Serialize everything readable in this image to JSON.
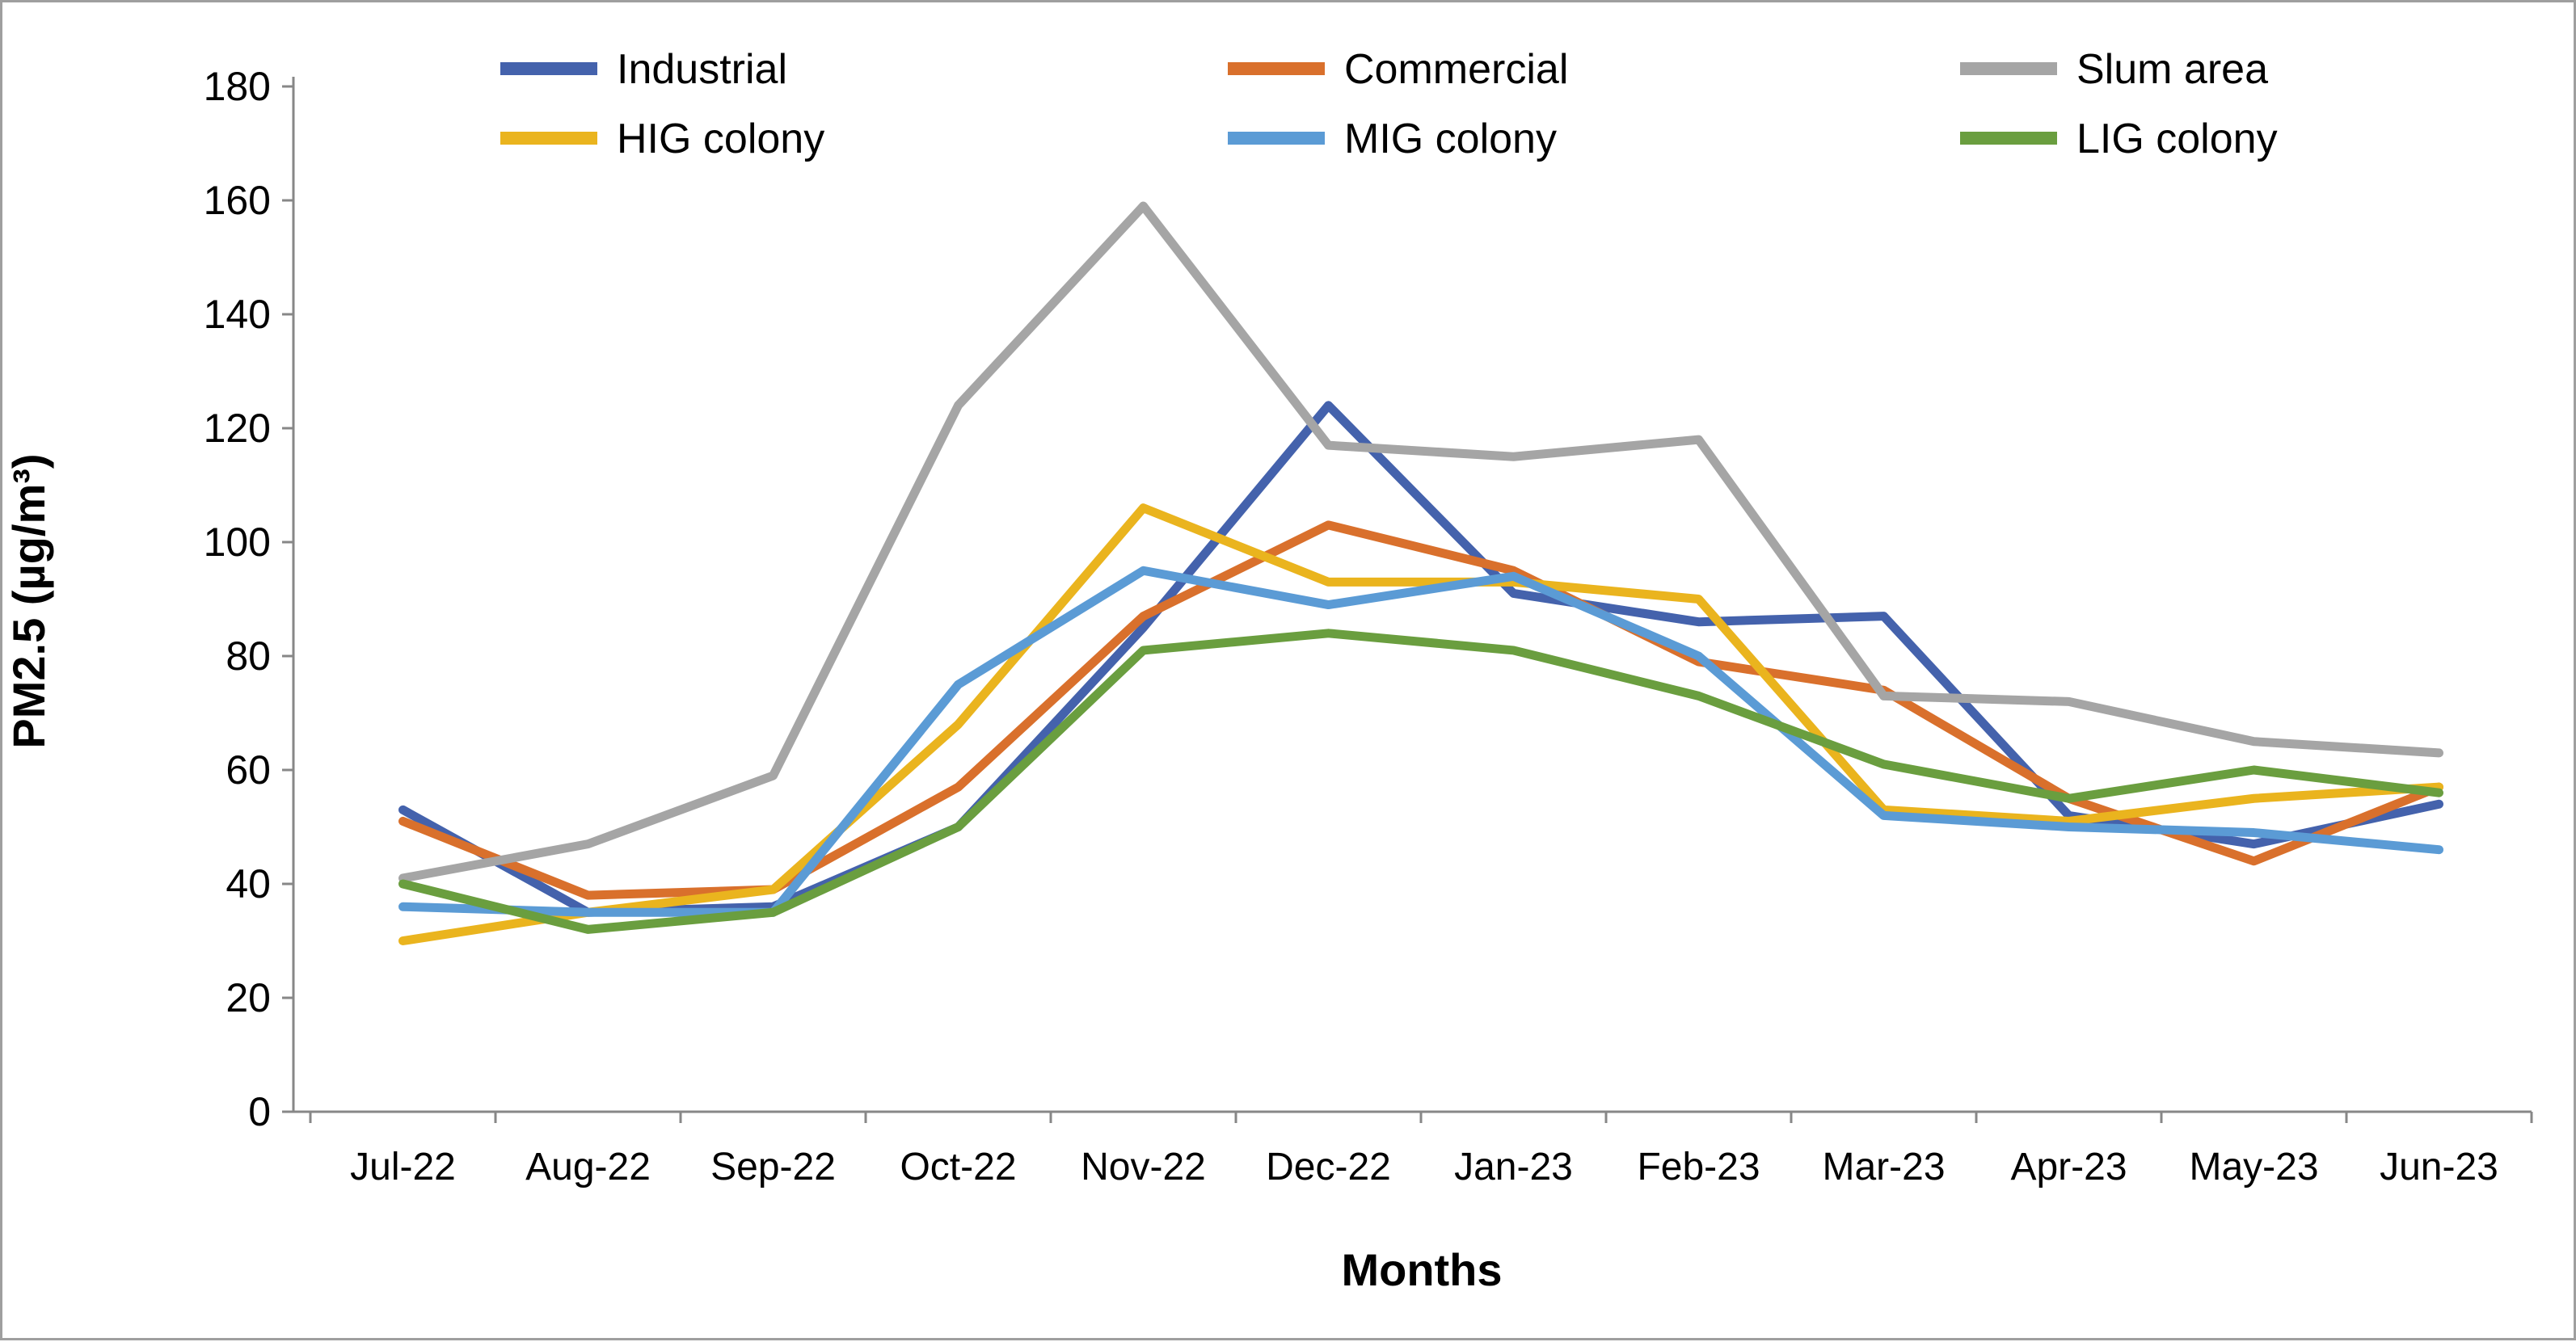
{
  "chart_data": {
    "type": "line",
    "title": "",
    "xlabel": "Months",
    "ylabel": "PM2.5 (µg/m³)",
    "ylim": [
      0,
      180
    ],
    "ytick_step": 20,
    "yticks": [
      0,
      20,
      40,
      60,
      80,
      100,
      120,
      140,
      160,
      180
    ],
    "grid": false,
    "legend_position": "top",
    "legend_rows": 2,
    "legend_columns": 3,
    "categories": [
      "Jul-22",
      "Aug-22",
      "Sep-22",
      "Oct-22",
      "Nov-22",
      "Dec-22",
      "Jan-23",
      "Feb-23",
      "Mar-23",
      "Apr-23",
      "May-23",
      "Jun-23"
    ],
    "series": [
      {
        "name": "Industrial",
        "color": "#4462AC",
        "values": [
          53,
          35,
          36,
          50,
          85,
          124,
          91,
          86,
          87,
          52,
          47,
          54
        ]
      },
      {
        "name": "Commercial",
        "color": "#D9702C",
        "values": [
          51,
          38,
          39,
          57,
          87,
          103,
          95,
          79,
          74,
          55,
          44,
          57
        ]
      },
      {
        "name": "Slum area",
        "color": "#A5A5A5",
        "values": [
          41,
          47,
          59,
          124,
          159,
          117,
          115,
          118,
          73,
          72,
          65,
          63
        ]
      },
      {
        "name": "HIG colony",
        "color": "#EAB41E",
        "values": [
          30,
          35,
          39,
          68,
          106,
          93,
          93,
          90,
          53,
          51,
          55,
          57
        ]
      },
      {
        "name": "MIG colony",
        "color": "#5B9BD5",
        "values": [
          36,
          35,
          35,
          75,
          95,
          89,
          94,
          80,
          52,
          50,
          49,
          46
        ]
      },
      {
        "name": "LIG colony",
        "color": "#6A9E3F",
        "values": [
          40,
          32,
          35,
          50,
          81,
          84,
          81,
          73,
          61,
          55,
          60,
          56
        ]
      }
    ],
    "axis_color": "#878787"
  }
}
